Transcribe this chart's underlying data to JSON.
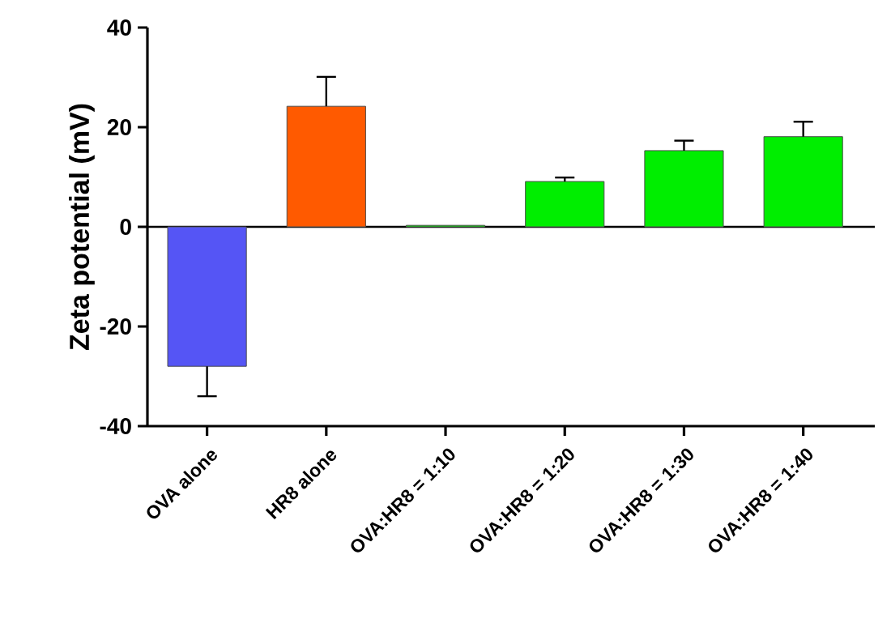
{
  "chart_data": {
    "type": "bar",
    "ylabel": "Zeta potential (mV)",
    "categories": [
      "OVA alone",
      "HR8 alone",
      "OVA:HR8 = 1:10",
      "OVA:HR8 = 1:20",
      "OVA:HR8 = 1:30",
      "OVA:HR8 = 1:40"
    ],
    "values": [
      -28.0,
      24.2,
      0.3,
      9.1,
      15.3,
      18.1
    ],
    "errors": [
      [
        -34.0,
        -28.0
      ],
      [
        24.2,
        30.1
      ],
      null,
      [
        9.1,
        9.9
      ],
      [
        15.3,
        17.3
      ],
      [
        18.1,
        21.1
      ]
    ],
    "colors": [
      "#5555f5",
      "#ff5a00",
      "#00ee00",
      "#00ee00",
      "#00ee00",
      "#00ee00"
    ],
    "ylim": [
      -40,
      40
    ],
    "yticks": [
      -40,
      -20,
      0,
      20,
      40
    ],
    "ref_lines": [
      {
        "axis": "y",
        "value": 0
      }
    ]
  }
}
